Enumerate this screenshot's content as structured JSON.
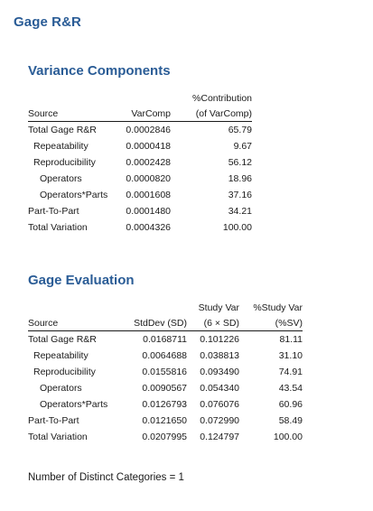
{
  "title": "Gage R&R",
  "variance_components": {
    "title": "Variance Components",
    "header_top": {
      "contribution": "%Contribution"
    },
    "header": {
      "source": "Source",
      "varcomp": "VarComp",
      "contribution": "(of VarComp)"
    },
    "rows": [
      {
        "source": "Total Gage R&R",
        "varcomp": "0.0002846",
        "contribution": "65.79"
      },
      {
        "source": "Repeatability",
        "varcomp": "0.0000418",
        "contribution": "9.67"
      },
      {
        "source": "Reproducibility",
        "varcomp": "0.0002428",
        "contribution": "56.12"
      },
      {
        "source": "Operators",
        "varcomp": "0.0000820",
        "contribution": "18.96"
      },
      {
        "source": "Operators*Parts",
        "varcomp": "0.0001608",
        "contribution": "37.16"
      },
      {
        "source": "Part-To-Part",
        "varcomp": "0.0001480",
        "contribution": "34.21"
      },
      {
        "source": "Total Variation",
        "varcomp": "0.0004326",
        "contribution": "100.00"
      }
    ]
  },
  "gage_evaluation": {
    "title": "Gage Evaluation",
    "header_top": {
      "study_var": "Study Var",
      "pct_study_var": "%Study Var"
    },
    "header": {
      "source": "Source",
      "stddev": "StdDev (SD)",
      "study_var": "(6 × SD)",
      "pct_study_var": "(%SV)"
    },
    "rows": [
      {
        "source": "Total Gage R&R",
        "stddev": "0.0168711",
        "study_var": "0.101226",
        "pct_study_var": "81.11"
      },
      {
        "source": "Repeatability",
        "stddev": "0.0064688",
        "study_var": "0.038813",
        "pct_study_var": "31.10"
      },
      {
        "source": "Reproducibility",
        "stddev": "0.0155816",
        "study_var": "0.093490",
        "pct_study_var": "74.91"
      },
      {
        "source": "Operators",
        "stddev": "0.0090567",
        "study_var": "0.054340",
        "pct_study_var": "43.54"
      },
      {
        "source": "Operators*Parts",
        "stddev": "0.0126793",
        "study_var": "0.076076",
        "pct_study_var": "60.96"
      },
      {
        "source": "Part-To-Part",
        "stddev": "0.0121650",
        "study_var": "0.072990",
        "pct_study_var": "58.49"
      },
      {
        "source": "Total Variation",
        "stddev": "0.0207995",
        "study_var": "0.124797",
        "pct_study_var": "100.00"
      }
    ]
  },
  "footer": {
    "distinct_categories": "Number of Distinct Categories = 1"
  }
}
